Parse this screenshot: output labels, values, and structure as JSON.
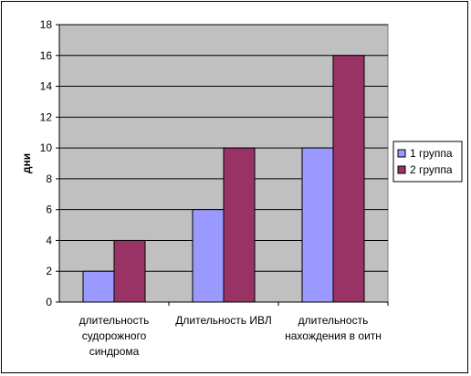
{
  "chart_data": {
    "type": "bar",
    "title": "",
    "xlabel": "",
    "ylabel": "дни",
    "ylim": [
      0,
      18
    ],
    "yticks": [
      0,
      2,
      4,
      6,
      8,
      10,
      12,
      14,
      16,
      18
    ],
    "grid": true,
    "legend_position": "right",
    "categories": [
      [
        "длительность",
        "судорожного",
        "синдрома"
      ],
      [
        "Длительность ИВЛ"
      ],
      [
        "длительность",
        "нахождения в оитн"
      ]
    ],
    "series": [
      {
        "name": "1 группа",
        "values": [
          2,
          6,
          10
        ],
        "color": "#9999ff"
      },
      {
        "name": "2 группа",
        "values": [
          4,
          10,
          16
        ],
        "color": "#993366"
      }
    ],
    "plot_background": "#c0c0c0"
  }
}
